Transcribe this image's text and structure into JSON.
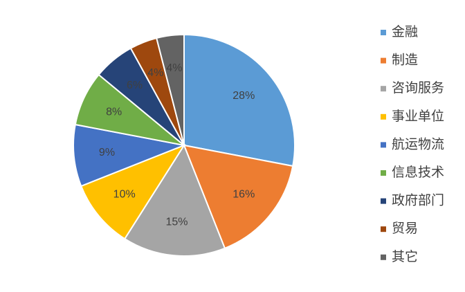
{
  "chart_data": {
    "type": "pie",
    "categories": [
      "金融",
      "制造",
      "咨询服务",
      "事业单位",
      "航运物流",
      "信息技术",
      "政府部门",
      "贸易",
      "其它"
    ],
    "values": [
      28,
      16,
      15,
      10,
      9,
      8,
      6,
      4,
      4
    ],
    "value_labels": [
      "28%",
      "16%",
      "15%",
      "10%",
      "9%",
      "8%",
      "6%",
      "4%",
      "4%"
    ],
    "colors": [
      "#5B9BD5",
      "#ED7D31",
      "#A5A5A5",
      "#FFC000",
      "#4472C4",
      "#70AD47",
      "#264478",
      "#9E480E",
      "#636363"
    ],
    "legend": "right"
  }
}
